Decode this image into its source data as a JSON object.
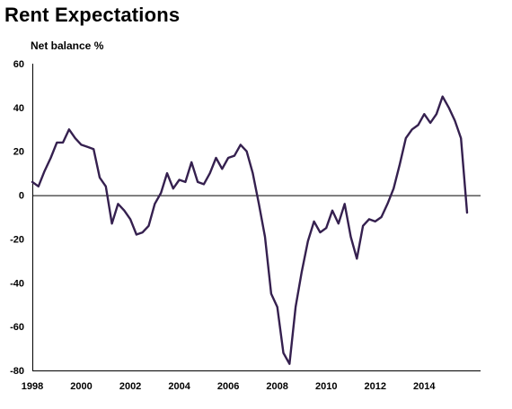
{
  "chart_data": {
    "type": "line",
    "title": "Rent Expectations",
    "ylabel": "Net balance %",
    "xlabel": "",
    "xlim": [
      1998,
      2016.3
    ],
    "ylim": [
      -80,
      60
    ],
    "y_ticks": [
      "60",
      "40",
      "20",
      "0",
      "-20",
      "-40",
      "-60",
      "-80"
    ],
    "y_tick_values": [
      60,
      40,
      20,
      0,
      -20,
      -40,
      -60,
      -80
    ],
    "x_ticks": [
      "1998",
      "2000",
      "2002",
      "2004",
      "2006",
      "2008",
      "2010",
      "2012",
      "2014"
    ],
    "x_tick_values": [
      1998,
      2000,
      2002,
      2004,
      2006,
      2008,
      2010,
      2012,
      2014
    ],
    "line_color": "#35204f",
    "grid": false,
    "series": [
      {
        "x": [
          1998.0,
          1998.25,
          1998.5,
          1998.75,
          1999.0,
          1999.25,
          1999.5,
          1999.75,
          2000.0,
          2000.25,
          2000.5,
          2000.75,
          2001.0,
          2001.25,
          2001.5,
          2001.75,
          2002.0,
          2002.25,
          2002.5,
          2002.75,
          2003.0,
          2003.25,
          2003.5,
          2003.75,
          2004.0,
          2004.25,
          2004.5,
          2004.75,
          2005.0,
          2005.25,
          2005.5,
          2005.75,
          2006.0,
          2006.25,
          2006.5,
          2006.75,
          2007.0,
          2007.25,
          2007.5,
          2007.75,
          2008.0,
          2008.25,
          2008.5,
          2008.75,
          2009.0,
          2009.25,
          2009.5,
          2009.75,
          2010.0,
          2010.25,
          2010.5,
          2010.75,
          2011.0,
          2011.25,
          2011.5,
          2011.75,
          2012.0,
          2012.25,
          2012.5,
          2012.75,
          2013.0,
          2013.25,
          2013.5,
          2013.75,
          2014.0,
          2014.25,
          2014.5,
          2014.75,
          2015.0,
          2015.25,
          2015.5,
          2015.75
        ],
        "values": [
          6,
          4,
          11,
          17,
          24,
          24,
          30,
          26,
          23,
          22,
          21,
          8,
          4,
          -13,
          -4,
          -7,
          -11,
          -18,
          -17,
          -14,
          -4,
          1,
          10,
          3,
          7,
          6,
          15,
          6,
          5,
          10,
          17,
          12,
          17,
          18,
          23,
          20,
          10,
          -4,
          -19,
          -45,
          -51,
          -72,
          -77,
          -51,
          -35,
          -21,
          -12,
          -17,
          -15,
          -7,
          -13,
          -4,
          -19,
          -29,
          -14,
          -11,
          -12,
          -10,
          -4,
          3,
          14,
          26,
          30,
          32,
          37,
          33,
          37,
          45,
          40,
          34,
          26,
          -8
        ]
      }
    ]
  }
}
